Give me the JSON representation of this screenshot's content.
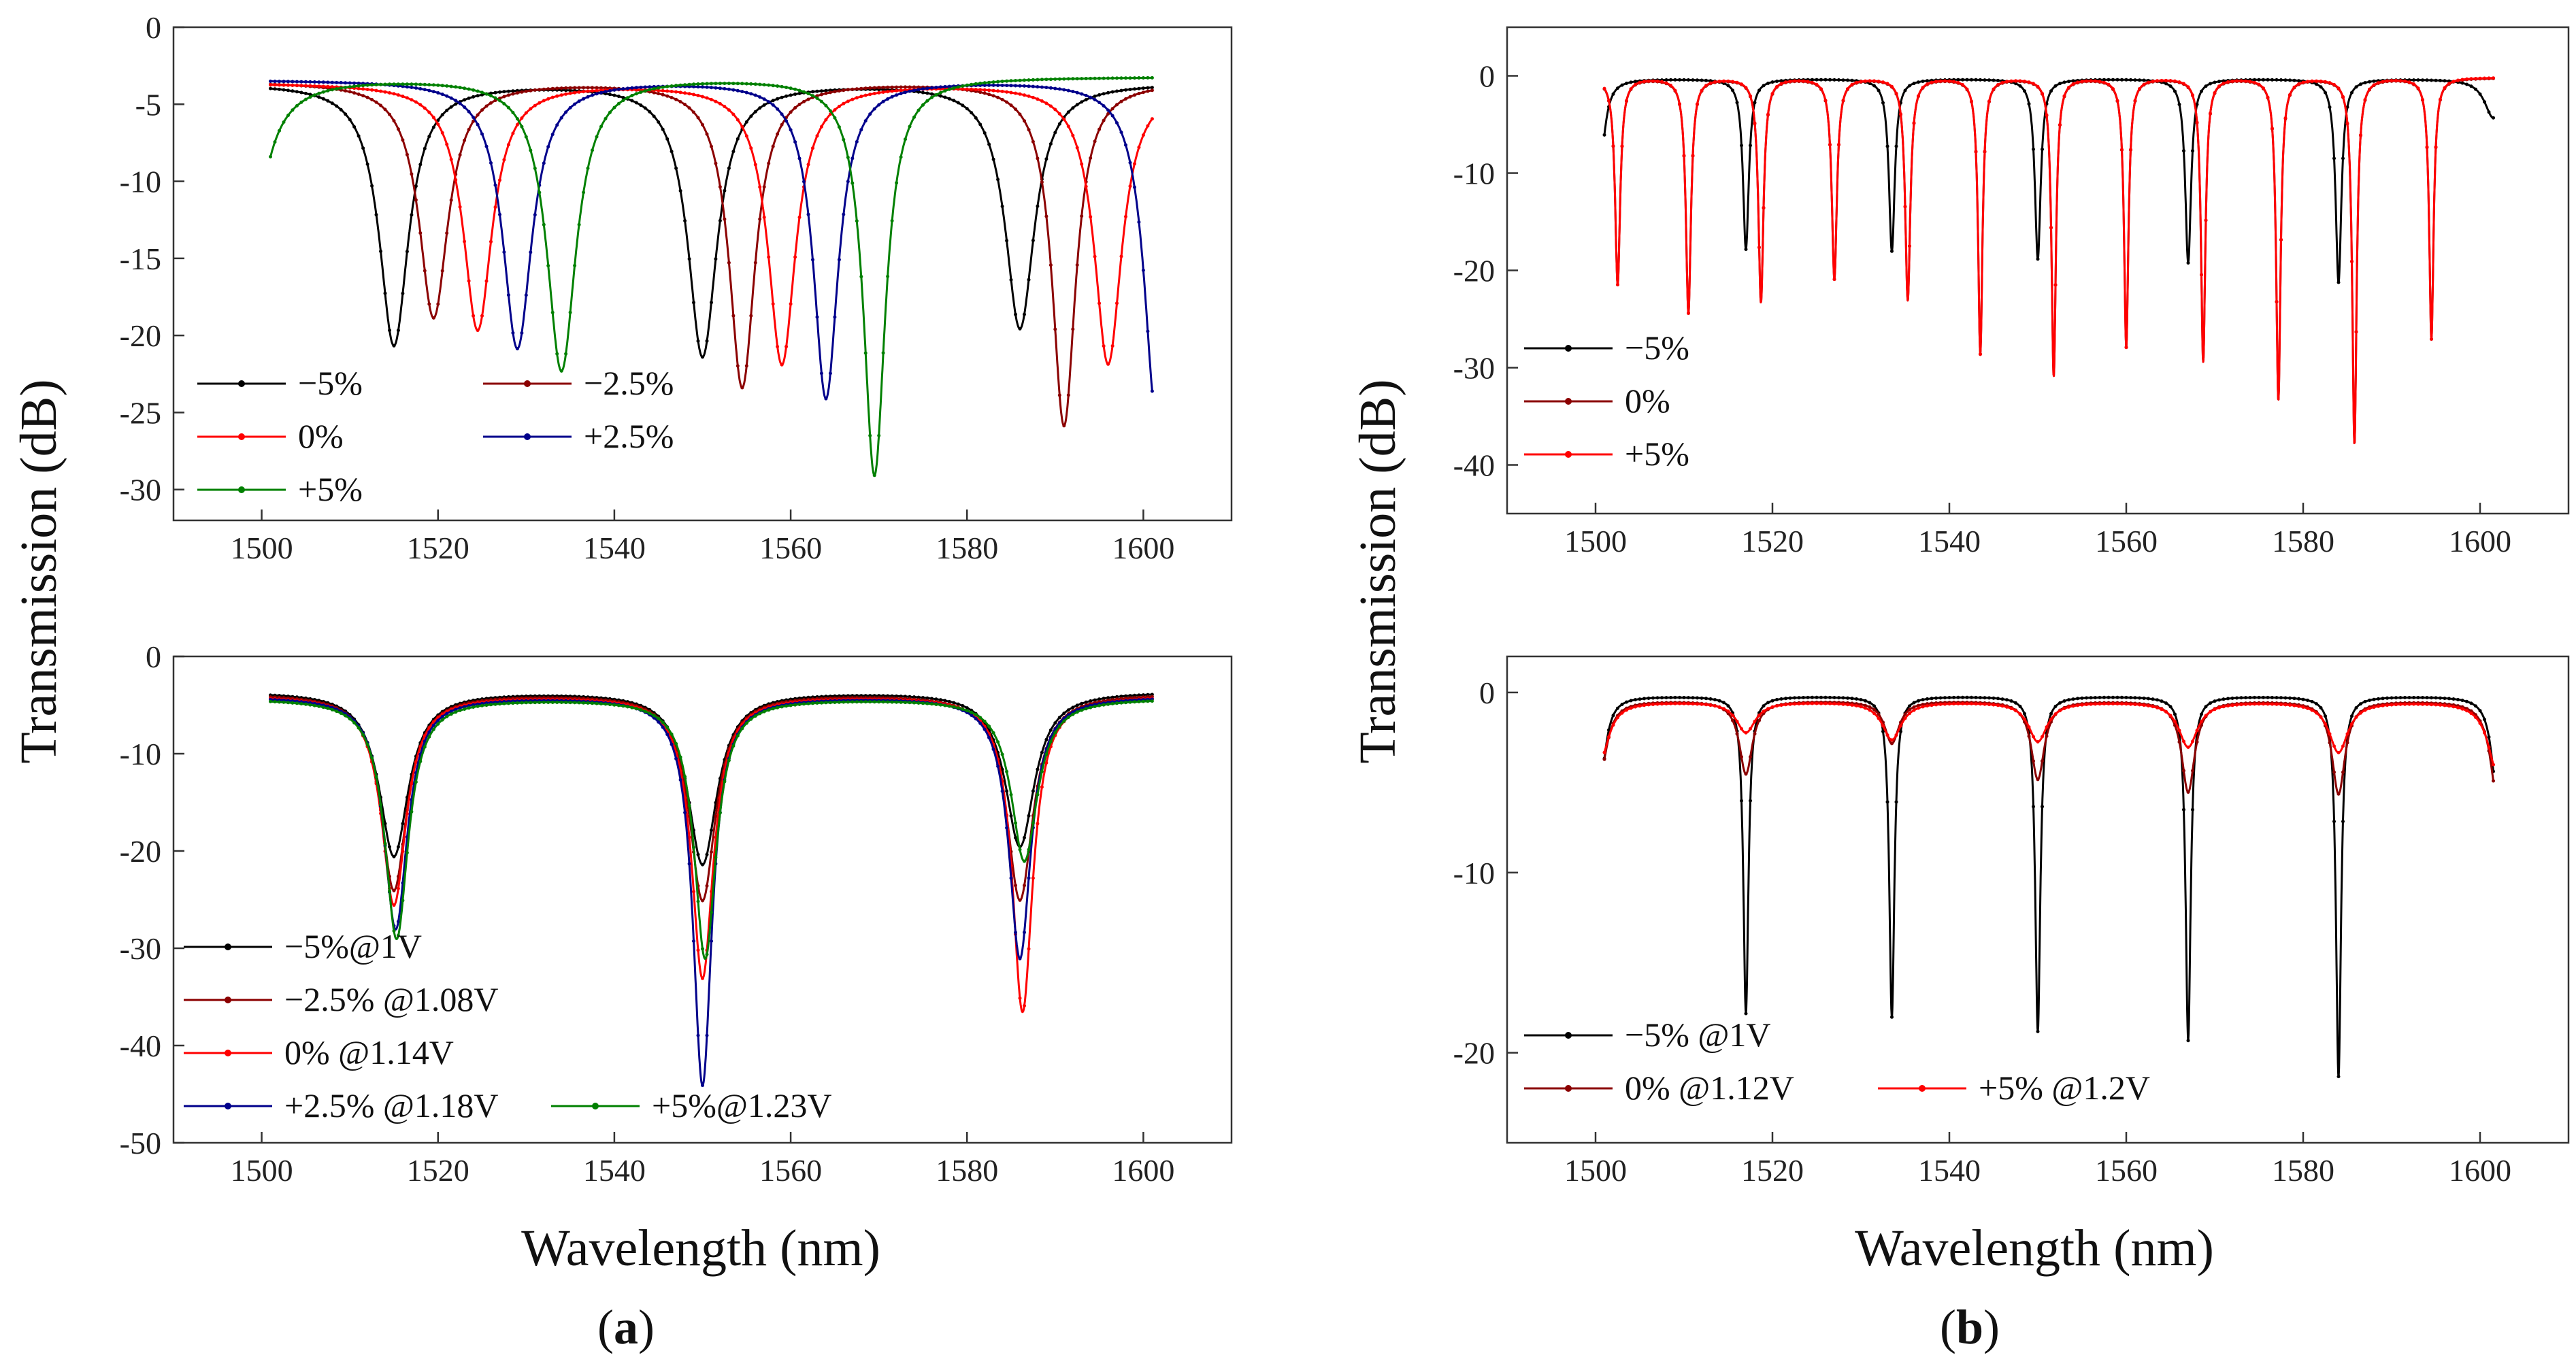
{
  "figure": {
    "ylabel": "Transmission (dB)",
    "xlabel": "Wavelength (nm)",
    "panel_labels": [
      {
        "open": "(",
        "letter": "a",
        "close": ")"
      },
      {
        "open": "(",
        "letter": "b",
        "close": ")"
      }
    ]
  },
  "colors": {
    "black": "#000000",
    "dark_red": "#8b0000",
    "red": "#ff0000",
    "blue": "#00008b",
    "green": "#008000"
  },
  "chart_data": [
    {
      "type": "line",
      "panel": "a-top",
      "xlim": [
        1490,
        1610
      ],
      "ylim": [
        -32,
        0
      ],
      "xticks": [
        1500,
        1520,
        1540,
        1560,
        1580,
        1600
      ],
      "yticks": [
        0,
        -5,
        -10,
        -15,
        -20,
        -25,
        -30
      ],
      "legend_position": "bottom-left, two columns",
      "series": [
        {
          "name": "−5%",
          "color": "#000000",
          "x_range": [
            1501,
            1601
          ],
          "baseline": -3.6,
          "dips": [
            {
              "x": 1515,
              "depth": -20.6,
              "w": 2.0
            },
            {
              "x": 1550,
              "depth": -21.3,
              "w": 2.0
            },
            {
              "x": 1586,
              "depth": -19.5,
              "w": 2.0
            }
          ]
        },
        {
          "name": "−2.5%",
          "color": "#8b0000",
          "x_range": [
            1501,
            1601
          ],
          "baseline": -3.5,
          "dips": [
            {
              "x": 1519.5,
              "depth": -18.8,
              "w": 2.0
            },
            {
              "x": 1554.5,
              "depth": -23.3,
              "w": 1.8
            },
            {
              "x": 1591,
              "depth": -25.8,
              "w": 1.6
            }
          ]
        },
        {
          "name": "0%",
          "color": "#ff0000",
          "x_range": [
            1501,
            1601
          ],
          "baseline": -3.6,
          "dips": [
            {
              "x": 1524.5,
              "depth": -19.6,
              "w": 2.0
            },
            {
              "x": 1559,
              "depth": -21.8,
              "w": 1.9
            },
            {
              "x": 1596,
              "depth": -21.8,
              "w": 1.9
            }
          ]
        },
        {
          "name": "+2.5%",
          "color": "#00008b",
          "x_range": [
            1501,
            1601
          ],
          "baseline": -3.4,
          "dips": [
            {
              "x": 1529,
              "depth": -20.8,
              "w": 2.0
            },
            {
              "x": 1564,
              "depth": -24.0,
              "w": 1.7
            },
            {
              "x": 1601.5,
              "depth": -25.3,
              "w": 1.7
            }
          ]
        },
        {
          "name": "+5%",
          "color": "#008000",
          "x_range": [
            1501,
            1601
          ],
          "baseline": -3.2,
          "dips": [
            {
              "x": 1534,
              "depth": -22.2,
              "w": 2.0
            },
            {
              "x": 1569.5,
              "depth": -29.0,
              "w": 1.5
            },
            {
              "x": 1497.5,
              "depth": -24.0,
              "w": 2.0
            }
          ]
        }
      ]
    },
    {
      "type": "line",
      "panel": "a-bottom",
      "xlim": [
        1490,
        1610
      ],
      "ylim": [
        -50,
        0
      ],
      "xticks": [
        1500,
        1520,
        1540,
        1560,
        1580,
        1600
      ],
      "yticks": [
        0,
        -10,
        -20,
        -30,
        -40,
        -50
      ],
      "legend_position": "bottom-left",
      "series": [
        {
          "name": "−5%@1V",
          "color": "#000000",
          "x_range": [
            1501,
            1601
          ],
          "baseline": -3.6,
          "dips": [
            {
              "x": 1515,
              "depth": -20.5,
              "w": 2.0
            },
            {
              "x": 1550,
              "depth": -21.3,
              "w": 2.0
            },
            {
              "x": 1586,
              "depth": -19.5,
              "w": 2.0
            }
          ]
        },
        {
          "name": "−2.5% @1.08V",
          "color": "#8b0000",
          "x_range": [
            1501,
            1601
          ],
          "baseline": -3.8,
          "dips": [
            {
              "x": 1515,
              "depth": -24.0,
              "w": 1.8
            },
            {
              "x": 1550,
              "depth": -25.0,
              "w": 1.8
            },
            {
              "x": 1586,
              "depth": -25.0,
              "w": 1.8
            }
          ]
        },
        {
          "name": "0% @1.14V",
          "color": "#ff0000",
          "x_range": [
            1501,
            1601
          ],
          "baseline": -4.0,
          "dips": [
            {
              "x": 1515,
              "depth": -25.5,
              "w": 1.7
            },
            {
              "x": 1550,
              "depth": -33.0,
              "w": 1.5
            },
            {
              "x": 1586.3,
              "depth": -36.5,
              "w": 1.4
            }
          ]
        },
        {
          "name": "+2.5% @1.18V",
          "color": "#00008b",
          "x_range": [
            1501,
            1601
          ],
          "baseline": -4.1,
          "dips": [
            {
              "x": 1515.2,
              "depth": -28.0,
              "w": 1.6
            },
            {
              "x": 1550,
              "depth": -44.0,
              "w": 1.3
            },
            {
              "x": 1586,
              "depth": -31.0,
              "w": 1.5
            }
          ]
        },
        {
          "name": "+5%@1.23V",
          "color": "#008000",
          "x_range": [
            1501,
            1601
          ],
          "baseline": -4.3,
          "dips": [
            {
              "x": 1515.3,
              "depth": -29.0,
              "w": 1.6
            },
            {
              "x": 1550.3,
              "depth": -31.0,
              "w": 1.5
            },
            {
              "x": 1586.5,
              "depth": -21.0,
              "w": 1.8
            }
          ]
        }
      ]
    },
    {
      "type": "line",
      "panel": "b-top",
      "xlim": [
        1490,
        1610
      ],
      "ylim": [
        -45,
        5
      ],
      "xticks": [
        1500,
        1520,
        1540,
        1560,
        1580,
        1600
      ],
      "yticks": [
        0,
        -10,
        -20,
        -30,
        -40
      ],
      "legend_position": "bottom-left",
      "series": [
        {
          "name": "−5%",
          "color": "#000000",
          "x_range": [
            1501,
            1601.5
          ],
          "baseline": -0.3,
          "dips": [
            {
              "x": 1500.5,
              "depth": -9.0,
              "w": 0.7
            },
            {
              "x": 1517,
              "depth": -17.8,
              "w": 0.4
            },
            {
              "x": 1533.5,
              "depth": -18.0,
              "w": 0.4
            },
            {
              "x": 1550,
              "depth": -18.8,
              "w": 0.4
            },
            {
              "x": 1567,
              "depth": -19.2,
              "w": 0.4
            },
            {
              "x": 1584,
              "depth": -21.2,
              "w": 0.4
            },
            {
              "x": 1601.5,
              "depth": -4.3,
              "w": 1.2
            }
          ]
        },
        {
          "name": "0%",
          "color": "#8b0000",
          "x_range": [
            1501,
            1601.5
          ],
          "baseline": -0.2,
          "dips": [
            {
              "x": 1502.5,
              "depth": -21.4,
              "w": 0.35
            },
            {
              "x": 1510.5,
              "depth": -24.3,
              "w": 0.35
            },
            {
              "x": 1518.7,
              "depth": -23.2,
              "w": 0.35
            },
            {
              "x": 1527,
              "depth": -20.8,
              "w": 0.35
            },
            {
              "x": 1535.3,
              "depth": -23.0,
              "w": 0.35
            },
            {
              "x": 1543.5,
              "depth": -28.5,
              "w": 0.3
            },
            {
              "x": 1551.8,
              "depth": -30.8,
              "w": 0.3
            },
            {
              "x": 1560,
              "depth": -27.8,
              "w": 0.3
            },
            {
              "x": 1568.7,
              "depth": -29.3,
              "w": 0.3
            },
            {
              "x": 1577.2,
              "depth": -33.3,
              "w": 0.3
            },
            {
              "x": 1585.8,
              "depth": -37.8,
              "w": 0.3
            },
            {
              "x": 1594.5,
              "depth": -27.0,
              "w": 0.3
            }
          ]
        },
        {
          "name": "+5%",
          "color": "#ff0000",
          "x_range": [
            1501,
            1601.5
          ],
          "baseline": -0.15,
          "dips": [
            {
              "x": 1502.5,
              "depth": -21.4,
              "w": 0.35
            },
            {
              "x": 1510.5,
              "depth": -24.3,
              "w": 0.35
            },
            {
              "x": 1518.7,
              "depth": -23.2,
              "w": 0.35
            },
            {
              "x": 1527,
              "depth": -20.8,
              "w": 0.35
            },
            {
              "x": 1535.3,
              "depth": -23.0,
              "w": 0.35
            },
            {
              "x": 1543.5,
              "depth": -28.5,
              "w": 0.3
            },
            {
              "x": 1551.8,
              "depth": -30.8,
              "w": 0.3
            },
            {
              "x": 1560,
              "depth": -27.8,
              "w": 0.3
            },
            {
              "x": 1568.7,
              "depth": -29.3,
              "w": 0.3
            },
            {
              "x": 1577.2,
              "depth": -33.3,
              "w": 0.3
            },
            {
              "x": 1585.8,
              "depth": -37.8,
              "w": 0.3
            },
            {
              "x": 1594.5,
              "depth": -27.0,
              "w": 0.3
            }
          ]
        }
      ]
    },
    {
      "type": "line",
      "panel": "b-bottom",
      "xlim": [
        1490,
        1610
      ],
      "ylim": [
        -25,
        2
      ],
      "xticks": [
        1500,
        1520,
        1540,
        1560,
        1580,
        1600
      ],
      "yticks": [
        0,
        -10,
        -20
      ],
      "legend_position": "bottom-left",
      "series": [
        {
          "name": "−5%  @1V",
          "color": "#000000",
          "x_range": [
            1501,
            1601.5
          ],
          "baseline": -0.2,
          "dips": [
            {
              "x": 1500.5,
              "depth": -5.0,
              "w": 0.8
            },
            {
              "x": 1517,
              "depth": -17.8,
              "w": 0.35
            },
            {
              "x": 1533.5,
              "depth": -18.0,
              "w": 0.35
            },
            {
              "x": 1550,
              "depth": -18.8,
              "w": 0.35
            },
            {
              "x": 1567,
              "depth": -19.3,
              "w": 0.35
            },
            {
              "x": 1584,
              "depth": -21.3,
              "w": 0.35
            },
            {
              "x": 1602,
              "depth": -6.0,
              "w": 0.8
            }
          ]
        },
        {
          "name": "0%   @1.12V",
          "color": "#8b0000",
          "x_range": [
            1501,
            1601.5
          ],
          "baseline": -0.45,
          "dips": [
            {
              "x": 1500.5,
              "depth": -4.5,
              "w": 1.0
            },
            {
              "x": 1517,
              "depth": -4.5,
              "w": 0.9
            },
            {
              "x": 1533.5,
              "depth": -2.8,
              "w": 1.0
            },
            {
              "x": 1550,
              "depth": -4.8,
              "w": 0.9
            },
            {
              "x": 1567,
              "depth": -5.5,
              "w": 0.9
            },
            {
              "x": 1584,
              "depth": -5.6,
              "w": 0.9
            },
            {
              "x": 1602,
              "depth": -6.0,
              "w": 1.0
            }
          ]
        },
        {
          "name": "+5% @1.2V",
          "color": "#ff0000",
          "x_range": [
            1501,
            1601.5
          ],
          "baseline": -0.5,
          "dips": [
            {
              "x": 1500.5,
              "depth": -3.8,
              "w": 1.2
            },
            {
              "x": 1517,
              "depth": -2.2,
              "w": 1.3
            },
            {
              "x": 1533.5,
              "depth": -2.6,
              "w": 1.3
            },
            {
              "x": 1550,
              "depth": -2.7,
              "w": 1.3
            },
            {
              "x": 1567,
              "depth": -3.0,
              "w": 1.3
            },
            {
              "x": 1584,
              "depth": -3.3,
              "w": 1.3
            },
            {
              "x": 1602,
              "depth": -4.5,
              "w": 1.3
            }
          ]
        }
      ]
    }
  ]
}
